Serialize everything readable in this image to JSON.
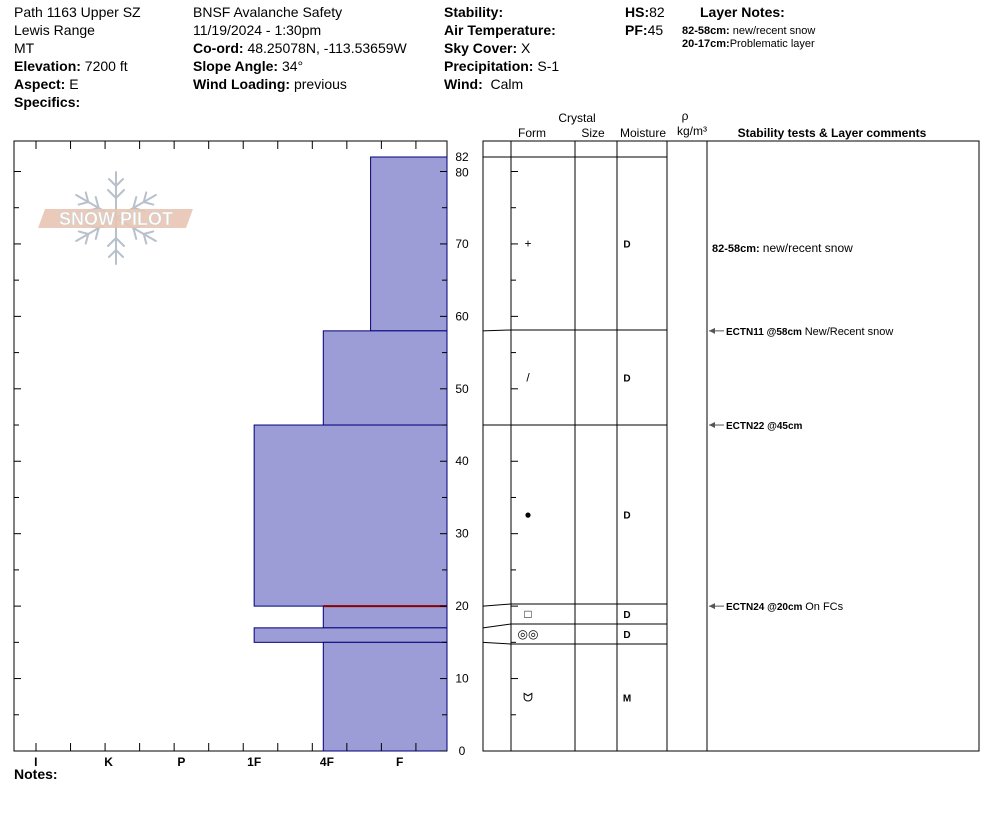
{
  "header": {
    "col1": {
      "location": "Path 1163 Upper SZ",
      "range": "Lewis Range",
      "state": "MT",
      "elevation_label": "Elevation:",
      "elevation_value": "7200 ft",
      "aspect_label": "Aspect:",
      "aspect_value": "E",
      "specifics_label": "Specifics:"
    },
    "col2": {
      "organization": "BNSF Avalanche Safety",
      "datetime": "11/19/2024 - 1:30pm",
      "coord_label": "Co-ord:",
      "coord_value": "48.25078N, -113.53659W",
      "slope_label": "Slope Angle:",
      "slope_value": "34°",
      "wind_loading_label": "Wind Loading:",
      "wind_loading_value": "previous"
    },
    "col3": {
      "stability_label": "Stability:",
      "air_temp_label": "Air Temperature:",
      "sky_label": "Sky Cover:",
      "sky_value": "X",
      "precip_label": "Precipitation:",
      "precip_value": "S-1",
      "wind_label": "Wind:",
      "wind_value": "Calm"
    },
    "col4": {
      "hs_label": "HS:",
      "hs_value": "82",
      "pf_label": "PF:",
      "pf_value": "45"
    },
    "layer_notes": {
      "title": "Layer Notes:",
      "items": [
        {
          "range": "82-58cm:",
          "text": "new/recent snow"
        },
        {
          "range": "20-17cm:",
          "text": "Problematic layer"
        }
      ]
    }
  },
  "logo_text": "SNOW PILOT",
  "notes_label": "Notes:",
  "table_headers": {
    "crystal": "Crystal",
    "form": "Form",
    "size": "Size",
    "moisture": "Moisture",
    "rho": "ρ",
    "density_unit": "kg/m³",
    "comments": "Stability tests & Layer comments"
  },
  "colors": {
    "layer_fill": "#9c9cd6",
    "layer_stroke": "#00007a",
    "weak_layer": "#8b0000",
    "arrow": "#555555"
  },
  "chart_data": {
    "type": "bar",
    "orientation": "horizontal",
    "y_axis_label": "",
    "ylim": [
      0,
      82
    ],
    "y_ticks": [
      0,
      10,
      20,
      30,
      40,
      50,
      60,
      70,
      80,
      82
    ],
    "hardness_scale": [
      "I",
      "K",
      "P",
      "1F",
      "4F",
      "F"
    ],
    "hardness_scale_positions": [
      1,
      2,
      3,
      4,
      5,
      6
    ],
    "x_range": [
      0.7,
      6.65
    ],
    "layers": [
      {
        "top": 82,
        "bottom": 58,
        "hardness": "F",
        "hardness_value": 5.6,
        "form": "+",
        "moisture": "D"
      },
      {
        "top": 58,
        "bottom": 45,
        "hardness": "4F",
        "hardness_value": 4.95,
        "form": "/",
        "moisture": "D"
      },
      {
        "top": 45,
        "bottom": 20,
        "hardness": "1F",
        "hardness_value": 4,
        "form": "●",
        "moisture": "D"
      },
      {
        "top": 20,
        "bottom": 17,
        "hardness": "4F",
        "hardness_value": 4.95,
        "form": "□",
        "moisture": "D"
      },
      {
        "top": 17,
        "bottom": 15,
        "hardness": "1F",
        "hardness_value": 4,
        "form": "◎◎",
        "moisture": "D"
      },
      {
        "top": 15,
        "bottom": 0,
        "hardness": "4F",
        "hardness_value": 4.95,
        "form": "ᗢ",
        "moisture": "M"
      }
    ],
    "weak_layer_depth": 20,
    "layer_comments": [
      {
        "depth": 70,
        "range": "82-58cm:",
        "text": "new/recent snow"
      }
    ],
    "stability_tests": [
      {
        "depth": 58,
        "test": "ECTN11 @58cm",
        "comment": "New/Recent snow"
      },
      {
        "depth": 45,
        "test": "ECTN22 @45cm",
        "comment": ""
      },
      {
        "depth": 20,
        "test": "ECTN24 @20cm",
        "comment": "On FCs"
      }
    ]
  }
}
